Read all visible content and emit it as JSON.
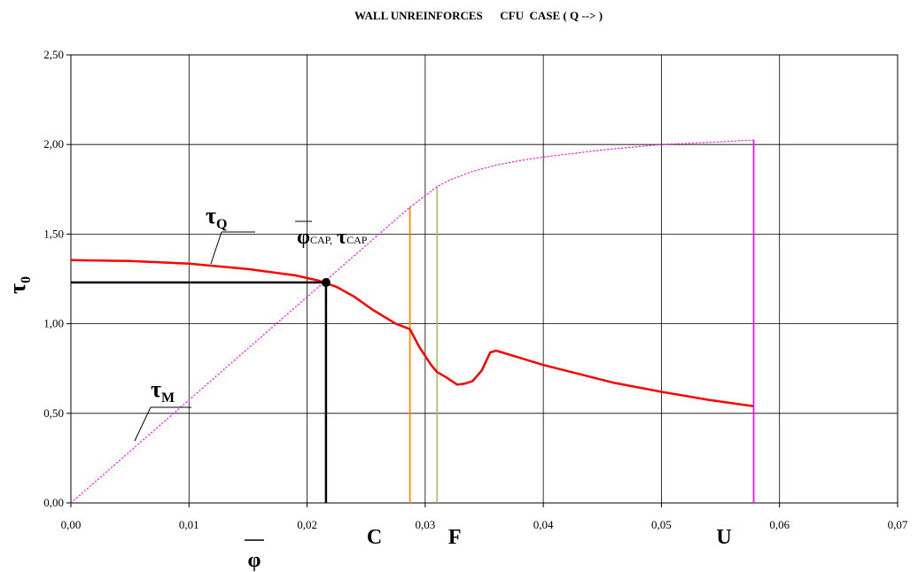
{
  "chart_data": {
    "type": "line",
    "title": "WALL UNREINFORCES      CFU  CASE ( Q --> )",
    "xlabel": "φ",
    "ylabel": "τ0",
    "ylabel_main": "τ",
    "ylabel_sub": "0",
    "xlim": [
      0,
      0.07
    ],
    "ylim": [
      0,
      2.5
    ],
    "x_ticks": [
      {
        "value": 0.0,
        "label": "0,00"
      },
      {
        "value": 0.01,
        "label": "0,01"
      },
      {
        "value": 0.02,
        "label": "0,02"
      },
      {
        "value": 0.03,
        "label": "0,03"
      },
      {
        "value": 0.04,
        "label": "0,04"
      },
      {
        "value": 0.05,
        "label": "0,05"
      },
      {
        "value": 0.06,
        "label": "0,06"
      },
      {
        "value": 0.07,
        "label": "0,07"
      }
    ],
    "y_ticks": [
      {
        "value": 0.0,
        "label": "0,00"
      },
      {
        "value": 0.5,
        "label": "0,50"
      },
      {
        "value": 1.0,
        "label": "1,00"
      },
      {
        "value": 1.5,
        "label": "1,50"
      },
      {
        "value": 2.0,
        "label": "2,00"
      },
      {
        "value": 2.5,
        "label": "2,50"
      }
    ],
    "grid": true,
    "series": [
      {
        "key": "tau_Q",
        "color": "#ff0000",
        "style": "solid",
        "points": [
          [
            0.0,
            1.355
          ],
          [
            0.005,
            1.35
          ],
          [
            0.01,
            1.335
          ],
          [
            0.015,
            1.305
          ],
          [
            0.019,
            1.27
          ],
          [
            0.021,
            1.24
          ],
          [
            0.0225,
            1.205
          ],
          [
            0.024,
            1.15
          ],
          [
            0.0255,
            1.08
          ],
          [
            0.0275,
            1.0
          ],
          [
            0.0287,
            0.97
          ],
          [
            0.0295,
            0.87
          ],
          [
            0.0305,
            0.77
          ],
          [
            0.031,
            0.73
          ],
          [
            0.0318,
            0.7
          ],
          [
            0.0327,
            0.66
          ],
          [
            0.0333,
            0.665
          ],
          [
            0.034,
            0.68
          ],
          [
            0.0348,
            0.74
          ],
          [
            0.0355,
            0.84
          ],
          [
            0.036,
            0.85
          ],
          [
            0.0365,
            0.84
          ],
          [
            0.038,
            0.81
          ],
          [
            0.04,
            0.77
          ],
          [
            0.043,
            0.72
          ],
          [
            0.046,
            0.67
          ],
          [
            0.05,
            0.62
          ],
          [
            0.054,
            0.575
          ],
          [
            0.0578,
            0.54
          ]
        ]
      },
      {
        "key": "tau_M",
        "color": "#ff00ff",
        "style": "dotted",
        "points": [
          [
            0.0,
            0.0
          ],
          [
            0.0287,
            1.65
          ],
          [
            0.029,
            1.665
          ],
          [
            0.03,
            1.715
          ],
          [
            0.031,
            1.765
          ],
          [
            0.032,
            1.8
          ],
          [
            0.034,
            1.85
          ],
          [
            0.036,
            1.885
          ],
          [
            0.038,
            1.91
          ],
          [
            0.04,
            1.93
          ],
          [
            0.045,
            1.97
          ],
          [
            0.05,
            2.0
          ],
          [
            0.055,
            2.015
          ],
          [
            0.0578,
            2.025
          ]
        ]
      }
    ],
    "highlight_point": {
      "x": 0.0216,
      "y": 1.23
    },
    "vertical_lines": [
      {
        "key": "C",
        "x": 0.0287,
        "y_top": 1.65,
        "color": "#ff8000"
      },
      {
        "key": "F",
        "x": 0.031,
        "y_top": 1.765,
        "color": "#99cc33"
      },
      {
        "key": "U",
        "x": 0.0578,
        "y_top": 2.025,
        "color": "#ff00ff"
      }
    ],
    "markers": {
      "C": {
        "x": 0.0257,
        "label": "C"
      },
      "F": {
        "x": 0.0325,
        "label": "F"
      },
      "U": {
        "x": 0.0553,
        "label": "U"
      }
    },
    "annotations": {
      "tau_Q": {
        "main": "τ",
        "sub": "Q"
      },
      "tau_M": {
        "main": "τ",
        "sub": "M"
      },
      "cap": {
        "phi": "φ",
        "phi_sub": "CAP,",
        "tau": "τ",
        "tau_sub": "CAP"
      }
    }
  }
}
